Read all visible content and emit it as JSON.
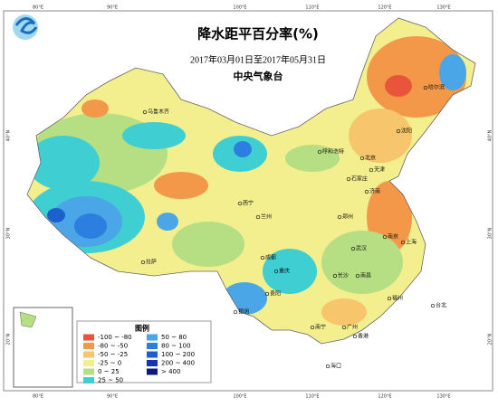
{
  "header": {
    "title": "降水距平百分率(%)",
    "date_range": "2017年03月01日至2017年05月31日",
    "issuer": "中央气象台"
  },
  "map": {
    "lon_labels": [
      "80°E",
      "90°E",
      "100°E",
      "110°E",
      "120°E",
      "130°E"
    ],
    "lat_labels": [
      "40°N",
      "30°N",
      "20°N"
    ],
    "cities": [
      "乌鲁木齐",
      "拉萨",
      "西宁",
      "兰州",
      "呼和浩特",
      "北京",
      "天津",
      "石家庄",
      "济南",
      "沈阳",
      "哈尔滨",
      "郑州",
      "武汉",
      "南京",
      "上海",
      "成都",
      "重庆",
      "贵阳",
      "昆明",
      "长沙",
      "南昌",
      "福州",
      "广州",
      "南宁",
      "海口",
      "台北",
      "香港"
    ]
  },
  "legend": {
    "title": "图例",
    "items": [
      {
        "label": "-100 ~ -80",
        "color": "#e8553a"
      },
      {
        "label": "-80 ~ -50",
        "color": "#f39848"
      },
      {
        "label": "-50 ~ -25",
        "color": "#f7c56b"
      },
      {
        "label": "-25 ~ 0",
        "color": "#f3ee8e"
      },
      {
        "label": "0 ~ 25",
        "color": "#b5df82"
      },
      {
        "label": "25 ~ 50",
        "color": "#3fcfd2"
      },
      {
        "label": "50 ~ 80",
        "color": "#4aa6e6"
      },
      {
        "label": "80 ~ 100",
        "color": "#2d7fdf"
      },
      {
        "label": "100 ~ 200",
        "color": "#1d5fcf"
      },
      {
        "label": "200 ~ 400",
        "color": "#1535b0"
      },
      {
        "label": "> 400",
        "color": "#0a1a80"
      }
    ]
  }
}
